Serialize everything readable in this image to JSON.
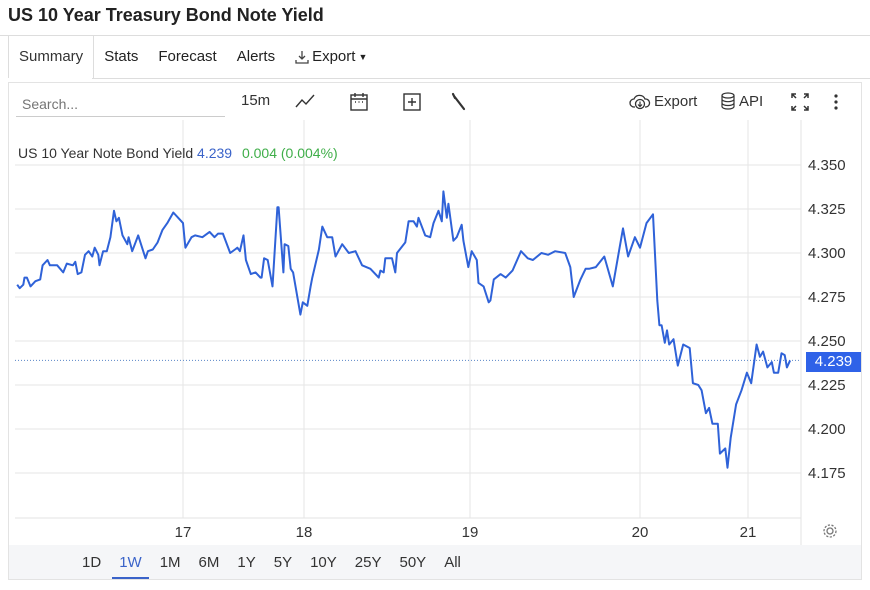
{
  "title": "US 10 Year Treasury Bond Note Yield",
  "tabs": [
    {
      "label": "Summary",
      "active": true
    },
    {
      "label": "Stats"
    },
    {
      "label": "Forecast"
    },
    {
      "label": "Alerts"
    },
    {
      "label": "Export"
    }
  ],
  "toolbar": {
    "search_placeholder": "Search...",
    "interval": "15m",
    "export_label": "Export",
    "api_label": "API"
  },
  "legend": {
    "name": "US 10 Year Note Bond Yield",
    "value": "4.239",
    "change": "0.004 (0.004%)"
  },
  "last_price_badge": "4.239",
  "ranges": [
    "1D",
    "1W",
    "1M",
    "6M",
    "1Y",
    "5Y",
    "10Y",
    "25Y",
    "50Y",
    "All"
  ],
  "active_range": "1W",
  "colors": {
    "line": "#2f62d8",
    "badge": "#2f62e8",
    "positive": "#3fae49",
    "accent": "#3a63c9"
  },
  "chart_data": {
    "type": "line",
    "title": "US 10 Year Note Bond Yield",
    "xlabel": "",
    "ylabel": "",
    "x_ticks": [
      17,
      18,
      19,
      20,
      21
    ],
    "x_tick_labels": [
      "17",
      "18",
      "19",
      "20",
      "21"
    ],
    "y_ticks": [
      4.35,
      4.325,
      4.3,
      4.275,
      4.25,
      4.225,
      4.2,
      4.175
    ],
    "y_tick_labels": [
      "4.350",
      "4.325",
      "4.300",
      "4.275",
      "4.250",
      "4.225",
      "4.200",
      "4.175"
    ],
    "ylim": [
      4.147,
      4.358
    ],
    "xlim": [
      15.61,
      21.48
    ],
    "grid": true,
    "last_value": 4.239,
    "series": [
      {
        "name": "US 10 Year Note Bond Yield",
        "points": [
          [
            15.63,
            4.282
          ],
          [
            15.65,
            4.28
          ],
          [
            15.68,
            4.282
          ],
          [
            15.69,
            4.286
          ],
          [
            15.71,
            4.286
          ],
          [
            15.74,
            4.281
          ],
          [
            15.78,
            4.284
          ],
          [
            15.82,
            4.285
          ],
          [
            15.84,
            4.293
          ],
          [
            15.88,
            4.296
          ],
          [
            15.9,
            4.293
          ],
          [
            15.96,
            4.293
          ],
          [
            16.01,
            4.289
          ],
          [
            16.04,
            4.294
          ],
          [
            16.09,
            4.293
          ],
          [
            16.11,
            4.295
          ],
          [
            16.13,
            4.288
          ],
          [
            16.16,
            4.289
          ],
          [
            16.19,
            4.299
          ],
          [
            16.22,
            4.301
          ],
          [
            16.25,
            4.298
          ],
          [
            16.27,
            4.303
          ],
          [
            16.3,
            4.299
          ],
          [
            16.31,
            4.293
          ],
          [
            16.34,
            4.301
          ],
          [
            16.37,
            4.301
          ],
          [
            16.4,
            4.309
          ],
          [
            16.43,
            4.324
          ],
          [
            16.45,
            4.318
          ],
          [
            16.47,
            4.32
          ],
          [
            16.5,
            4.31
          ],
          [
            16.54,
            4.305
          ],
          [
            16.55,
            4.309
          ],
          [
            16.58,
            4.301
          ],
          [
            16.63,
            4.31
          ],
          [
            16.69,
            4.297
          ],
          [
            16.71,
            4.301
          ],
          [
            16.75,
            4.302
          ],
          [
            16.79,
            4.306
          ],
          [
            16.83,
            4.313
          ],
          [
            16.87,
            4.317
          ],
          [
            16.92,
            4.323
          ],
          [
            16.96,
            4.32
          ],
          [
            17.0,
            4.317
          ],
          [
            17.02,
            4.303
          ],
          [
            17.07,
            4.309
          ],
          [
            17.1,
            4.31
          ],
          [
            17.16,
            4.309
          ],
          [
            17.22,
            4.312
          ],
          [
            17.26,
            4.309
          ],
          [
            17.29,
            4.311
          ],
          [
            17.33,
            4.311
          ],
          [
            17.39,
            4.3
          ],
          [
            17.43,
            4.302
          ],
          [
            17.45,
            4.303
          ],
          [
            17.47,
            4.301
          ],
          [
            17.5,
            4.31
          ],
          [
            17.52,
            4.296
          ],
          [
            17.56,
            4.288
          ],
          [
            17.6,
            4.289
          ],
          [
            17.64,
            4.286
          ],
          [
            17.65,
            4.286
          ],
          [
            17.67,
            4.297
          ],
          [
            17.7,
            4.296
          ],
          [
            17.74,
            4.281
          ],
          [
            17.78,
            4.326
          ],
          [
            17.79,
            4.326
          ],
          [
            17.83,
            4.289
          ],
          [
            17.84,
            4.305
          ],
          [
            17.87,
            4.304
          ],
          [
            17.89,
            4.291
          ],
          [
            17.91,
            4.289
          ],
          [
            17.97,
            4.265
          ],
          [
            17.99,
            4.272
          ],
          [
            18.02,
            4.27
          ],
          [
            18.04,
            4.281
          ],
          [
            18.05,
            4.286
          ],
          [
            18.09,
            4.302
          ],
          [
            18.11,
            4.315
          ],
          [
            18.14,
            4.309
          ],
          [
            18.17,
            4.309
          ],
          [
            18.19,
            4.298
          ],
          [
            18.23,
            4.305
          ],
          [
            18.27,
            4.3
          ],
          [
            18.31,
            4.301
          ],
          [
            18.35,
            4.293
          ],
          [
            18.4,
            4.291
          ],
          [
            18.45,
            4.286
          ],
          [
            18.46,
            4.29
          ],
          [
            18.48,
            4.289
          ],
          [
            18.49,
            4.297
          ],
          [
            18.53,
            4.297
          ],
          [
            18.55,
            4.289
          ],
          [
            18.56,
            4.3
          ],
          [
            18.61,
            4.306
          ],
          [
            18.63,
            4.318
          ],
          [
            18.66,
            4.318
          ],
          [
            18.68,
            4.315
          ],
          [
            18.69,
            4.32
          ],
          [
            18.73,
            4.31
          ],
          [
            18.76,
            4.309
          ],
          [
            18.78,
            4.317
          ],
          [
            18.81,
            4.324
          ],
          [
            18.83,
            4.318
          ],
          [
            18.84,
            4.335
          ],
          [
            18.86,
            4.32
          ],
          [
            18.87,
            4.328
          ],
          [
            18.9,
            4.307
          ],
          [
            18.92,
            4.309
          ],
          [
            18.95,
            4.316
          ],
          [
            18.96,
            4.307
          ],
          [
            18.99,
            4.292
          ],
          [
            19.01,
            4.301
          ],
          [
            19.04,
            4.296
          ],
          [
            19.05,
            4.283
          ],
          [
            19.08,
            4.281
          ],
          [
            19.11,
            4.272
          ],
          [
            19.12,
            4.273
          ],
          [
            19.14,
            4.285
          ],
          [
            19.18,
            4.288
          ],
          [
            19.21,
            4.286
          ],
          [
            19.25,
            4.29
          ],
          [
            19.3,
            4.301
          ],
          [
            19.34,
            4.297
          ],
          [
            19.37,
            4.296
          ],
          [
            19.42,
            4.3
          ],
          [
            19.46,
            4.299
          ],
          [
            19.5,
            4.301
          ],
          [
            19.56,
            4.3
          ],
          [
            19.59,
            4.292
          ],
          [
            19.61,
            4.275
          ],
          [
            19.65,
            4.285
          ],
          [
            19.68,
            4.291
          ],
          [
            19.7,
            4.291
          ],
          [
            19.74,
            4.292
          ],
          [
            19.79,
            4.298
          ],
          [
            19.84,
            4.281
          ],
          [
            19.88,
            4.303
          ],
          [
            19.9,
            4.314
          ],
          [
            19.93,
            4.298
          ],
          [
            19.97,
            4.309
          ],
          [
            20.0,
            4.303
          ],
          [
            20.06,
            4.317
          ],
          [
            20.12,
            4.322
          ],
          [
            20.16,
            4.273
          ],
          [
            20.18,
            4.259
          ],
          [
            20.2,
            4.259
          ],
          [
            20.23,
            4.249
          ],
          [
            20.25,
            4.256
          ],
          [
            20.27,
            4.248
          ],
          [
            20.31,
            4.251
          ],
          [
            20.35,
            4.236
          ],
          [
            20.4,
            4.248
          ],
          [
            20.46,
            4.246
          ],
          [
            20.49,
            4.226
          ],
          [
            20.54,
            4.225
          ],
          [
            20.57,
            4.222
          ],
          [
            20.61,
            4.209
          ],
          [
            20.64,
            4.212
          ],
          [
            20.67,
            4.203
          ],
          [
            20.72,
            4.203
          ],
          [
            20.74,
            4.186
          ],
          [
            20.79,
            4.189
          ],
          [
            20.81,
            4.178
          ],
          [
            20.84,
            4.195
          ],
          [
            20.89,
            4.214
          ],
          [
            20.94,
            4.222
          ],
          [
            20.99,
            4.232
          ],
          [
            21.03,
            4.226
          ],
          [
            21.08,
            4.248
          ],
          [
            21.11,
            4.241
          ],
          [
            21.14,
            4.244
          ],
          [
            21.18,
            4.235
          ],
          [
            21.22,
            4.238
          ],
          [
            21.24,
            4.232
          ],
          [
            21.28,
            4.232
          ],
          [
            21.31,
            4.243
          ],
          [
            21.34,
            4.242
          ],
          [
            21.36,
            4.235
          ],
          [
            21.39,
            4.239
          ]
        ]
      }
    ]
  }
}
